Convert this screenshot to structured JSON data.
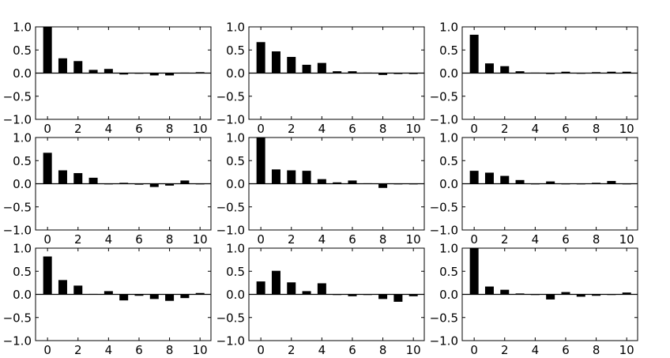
{
  "chart_data": [
    {
      "type": "bar",
      "x": [
        0,
        1,
        2,
        3,
        4,
        5,
        6,
        7,
        8,
        9,
        10
      ],
      "values": [
        1.0,
        0.32,
        0.26,
        0.07,
        0.09,
        -0.03,
        0.0,
        -0.05,
        -0.05,
        0.01,
        0.02
      ],
      "ylim": [
        -1.0,
        1.0
      ],
      "xlim": [
        -0.5,
        11.0
      ],
      "yticks": [
        "1.0",
        "0.5",
        "0.0",
        "−0.5",
        "−1.0"
      ],
      "xticks": [
        "0",
        "2",
        "4",
        "6",
        "8",
        "10"
      ],
      "xtick_values": [
        0,
        2,
        4,
        6,
        8,
        10
      ],
      "ytick_values": [
        1.0,
        0.5,
        0.0,
        -0.5,
        -1.0
      ],
      "bar_color": "#000000"
    },
    {
      "type": "bar",
      "x": [
        0,
        1,
        2,
        3,
        4,
        5,
        6,
        7,
        8,
        9,
        10
      ],
      "values": [
        0.67,
        0.47,
        0.35,
        0.18,
        0.22,
        0.04,
        0.04,
        0.01,
        -0.04,
        -0.02,
        -0.02
      ],
      "ylim": [
        -1.0,
        1.0
      ],
      "xlim": [
        -0.5,
        11.0
      ],
      "yticks": [
        "1.0",
        "0.5",
        "0.0",
        "−0.5",
        "−1.0"
      ],
      "xticks": [
        "0",
        "2",
        "4",
        "6",
        "8",
        "10"
      ],
      "xtick_values": [
        0,
        2,
        4,
        6,
        8,
        10
      ],
      "ytick_values": [
        1.0,
        0.5,
        0.0,
        -0.5,
        -1.0
      ],
      "bar_color": "#000000"
    },
    {
      "type": "bar",
      "x": [
        0,
        1,
        2,
        3,
        4,
        5,
        6,
        7,
        8,
        9,
        10
      ],
      "values": [
        0.83,
        0.21,
        0.15,
        0.04,
        0.01,
        -0.02,
        0.03,
        0.0,
        0.02,
        0.03,
        0.03
      ],
      "ylim": [
        -1.0,
        1.0
      ],
      "xlim": [
        -0.5,
        11.0
      ],
      "yticks": [
        "1.0",
        "0.5",
        "0.0",
        "−0.5",
        "−1.0"
      ],
      "xticks": [
        "0",
        "2",
        "4",
        "6",
        "8",
        "10"
      ],
      "xtick_values": [
        0,
        2,
        4,
        6,
        8,
        10
      ],
      "ytick_values": [
        1.0,
        0.5,
        0.0,
        -0.5,
        -1.0
      ],
      "bar_color": "#000000"
    },
    {
      "type": "bar",
      "x": [
        0,
        1,
        2,
        3,
        4,
        5,
        6,
        7,
        8,
        9,
        10
      ],
      "values": [
        0.67,
        0.29,
        0.23,
        0.13,
        0.0,
        0.02,
        -0.02,
        -0.07,
        -0.04,
        0.07,
        0.0
      ],
      "ylim": [
        -1.0,
        1.0
      ],
      "xlim": [
        -0.5,
        11.0
      ],
      "yticks": [
        "1.0",
        "0.5",
        "0.0",
        "−0.5",
        "−1.0"
      ],
      "xticks": [
        "0",
        "2",
        "4",
        "6",
        "8",
        "10"
      ],
      "xtick_values": [
        0,
        2,
        4,
        6,
        8,
        10
      ],
      "ytick_values": [
        1.0,
        0.5,
        0.0,
        -0.5,
        -1.0
      ],
      "bar_color": "#000000"
    },
    {
      "type": "bar",
      "x": [
        0,
        1,
        2,
        3,
        4,
        5,
        6,
        7,
        8,
        9,
        10
      ],
      "values": [
        1.0,
        0.31,
        0.29,
        0.28,
        0.1,
        0.03,
        0.07,
        0.01,
        -0.09,
        0.0,
        -0.01
      ],
      "ylim": [
        -1.0,
        1.0
      ],
      "xlim": [
        -0.5,
        11.0
      ],
      "yticks": [
        "1.0",
        "0.5",
        "0.0",
        "−0.5",
        "−1.0"
      ],
      "xticks": [
        "0",
        "2",
        "4",
        "6",
        "8",
        "10"
      ],
      "xtick_values": [
        0,
        2,
        4,
        6,
        8,
        10
      ],
      "ytick_values": [
        1.0,
        0.5,
        0.0,
        -0.5,
        -1.0
      ],
      "bar_color": "#000000"
    },
    {
      "type": "bar",
      "x": [
        0,
        1,
        2,
        3,
        4,
        5,
        6,
        7,
        8,
        9,
        10
      ],
      "values": [
        0.28,
        0.24,
        0.17,
        0.08,
        0.0,
        0.05,
        -0.01,
        -0.01,
        0.02,
        0.06,
        0.0
      ],
      "ylim": [
        -1.0,
        1.0
      ],
      "xlim": [
        -0.5,
        11.0
      ],
      "yticks": [
        "1.0",
        "0.5",
        "0.0",
        "−0.5",
        "−1.0"
      ],
      "xticks": [
        "0",
        "2",
        "4",
        "6",
        "8",
        "10"
      ],
      "xtick_values": [
        0,
        2,
        4,
        6,
        8,
        10
      ],
      "ytick_values": [
        1.0,
        0.5,
        0.0,
        -0.5,
        -1.0
      ],
      "bar_color": "#000000"
    },
    {
      "type": "bar",
      "x": [
        0,
        1,
        2,
        3,
        4,
        5,
        6,
        7,
        8,
        9,
        10
      ],
      "values": [
        0.82,
        0.31,
        0.19,
        0.01,
        0.07,
        -0.13,
        -0.03,
        -0.1,
        -0.14,
        -0.08,
        0.03
      ],
      "ylim": [
        -1.0,
        1.0
      ],
      "xlim": [
        -0.5,
        11.0
      ],
      "yticks": [
        "1.0",
        "0.5",
        "0.0",
        "−0.5",
        "−1.0"
      ],
      "xticks": [
        "0",
        "2",
        "4",
        "6",
        "8",
        "10"
      ],
      "xtick_values": [
        0,
        2,
        4,
        6,
        8,
        10
      ],
      "ytick_values": [
        1.0,
        0.5,
        0.0,
        -0.5,
        -1.0
      ],
      "bar_color": "#000000"
    },
    {
      "type": "bar",
      "x": [
        0,
        1,
        2,
        3,
        4,
        5,
        6,
        7,
        8,
        9,
        10
      ],
      "values": [
        0.28,
        0.51,
        0.26,
        0.07,
        0.24,
        0.0,
        -0.04,
        0.0,
        -0.1,
        -0.16,
        -0.04
      ],
      "ylim": [
        -1.0,
        1.0
      ],
      "xlim": [
        -0.5,
        11.0
      ],
      "yticks": [
        "1.0",
        "0.5",
        "0.0",
        "−0.5",
        "−1.0"
      ],
      "xticks": [
        "0",
        "2",
        "4",
        "6",
        "8",
        "10"
      ],
      "xtick_values": [
        0,
        2,
        4,
        6,
        8,
        10
      ],
      "ytick_values": [
        1.0,
        0.5,
        0.0,
        -0.5,
        -1.0
      ],
      "bar_color": "#000000"
    },
    {
      "type": "bar",
      "x": [
        0,
        1,
        2,
        3,
        4,
        5,
        6,
        7,
        8,
        9,
        10
      ],
      "values": [
        1.0,
        0.17,
        0.1,
        0.02,
        0.0,
        -0.11,
        0.05,
        -0.05,
        -0.03,
        0.0,
        0.04
      ],
      "ylim": [
        -1.0,
        1.0
      ],
      "xlim": [
        -0.5,
        11.0
      ],
      "yticks": [
        "1.0",
        "0.5",
        "0.0",
        "−0.5",
        "−1.0"
      ],
      "xticks": [
        "0",
        "2",
        "4",
        "6",
        "8",
        "10"
      ],
      "xtick_values": [
        0,
        2,
        4,
        6,
        8,
        10
      ],
      "ytick_values": [
        1.0,
        0.5,
        0.0,
        -0.5,
        -1.0
      ],
      "bar_color": "#000000"
    }
  ]
}
